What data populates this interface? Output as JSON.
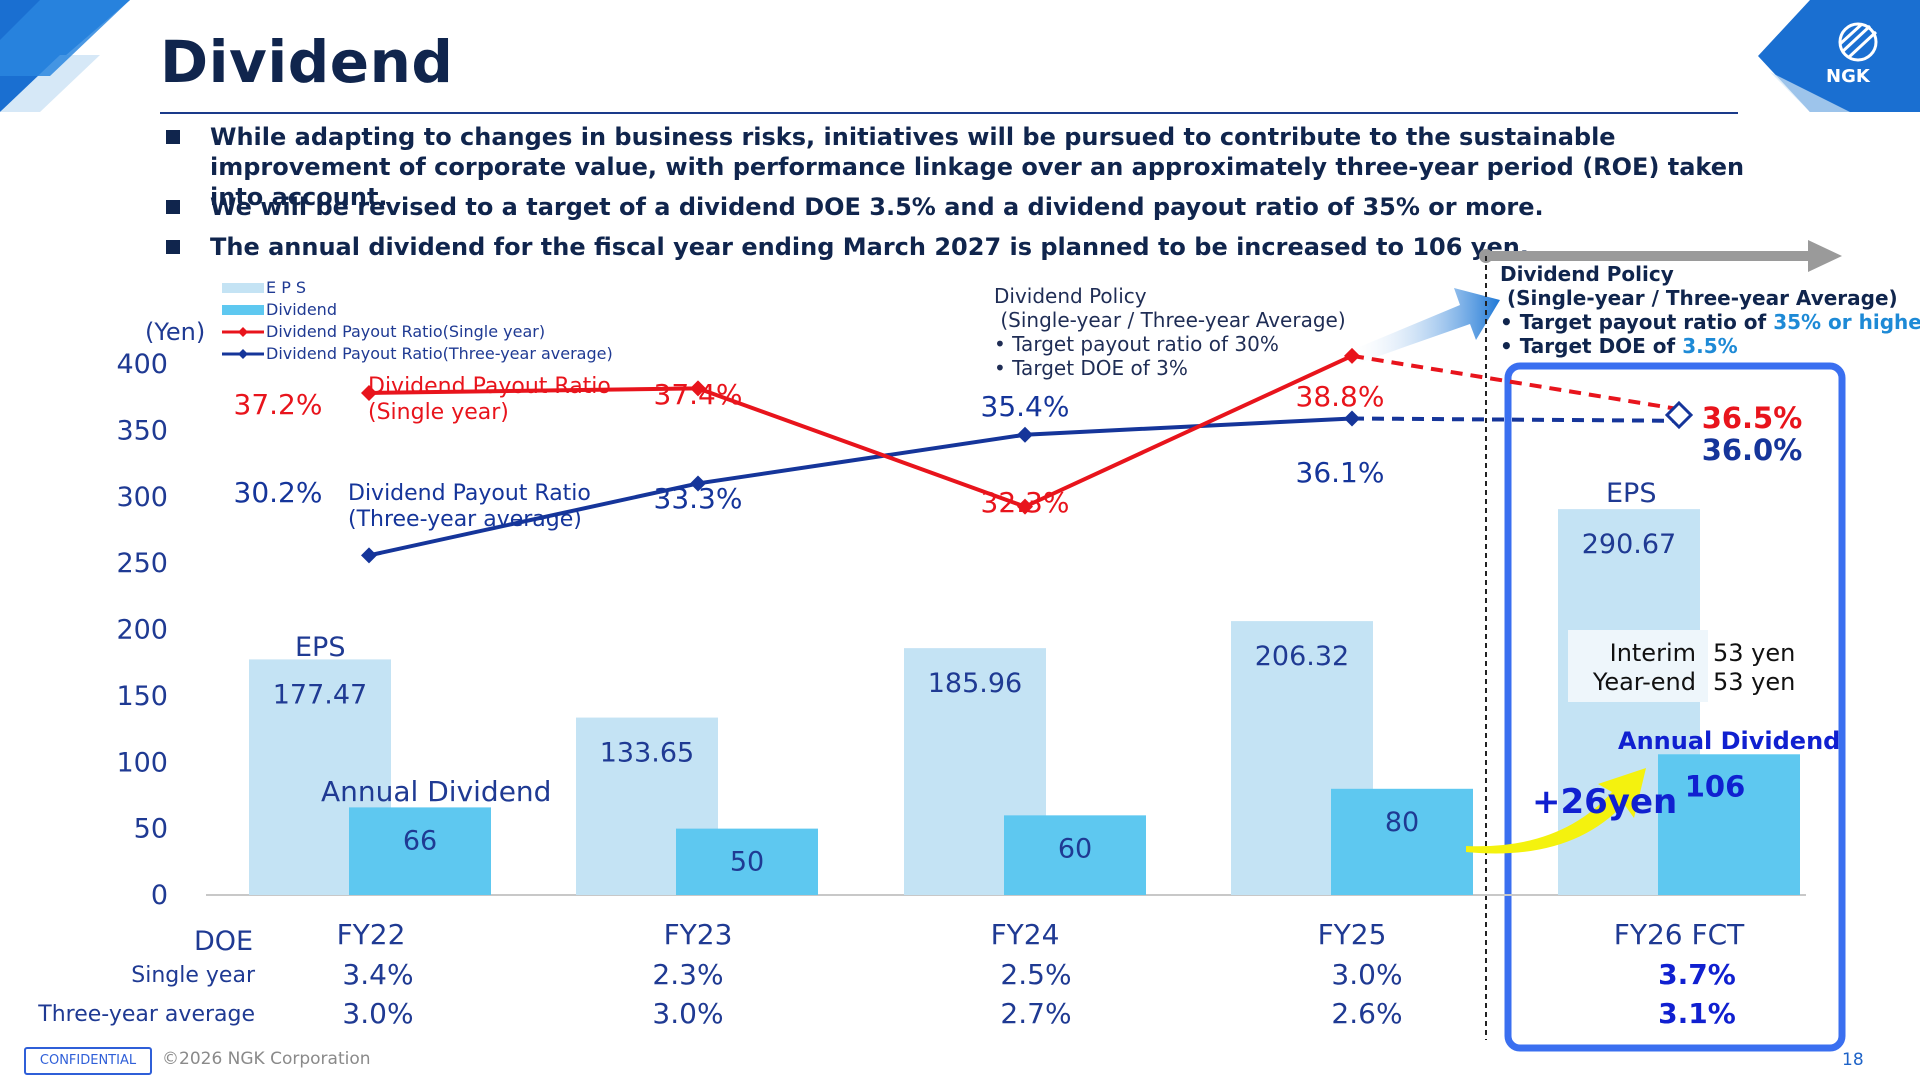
{
  "page": {
    "title": "Dividend",
    "bullets": [
      "While adapting to changes in business risks, initiatives will be pursued to contribute to the sustainable improvement of corporate value, with performance linkage over an approximately three-year period (ROE) taken into account.",
      "We will be revised to a target of a dividend  DOE 3.5% and a dividend payout ratio of 35% or more.",
      "The annual dividend for the fiscal year ending March 2027 is planned to be increased to 106 yen."
    ],
    "logo": "NGK",
    "footer": {
      "confidential": "CONFIDENTIAL",
      "copyright": "©2026 NGK Corporation",
      "page_number": "18"
    }
  },
  "annotations": {
    "old_policy": [
      "Dividend Policy",
      " (Single-year / Three-year Average)",
      "• Target payout ratio of 30%",
      "• Target DOE of 3%"
    ],
    "new_policy": {
      "title": "Dividend Policy",
      "subtitle": " (Single-year / Three-year Average)",
      "line1_prefix": "• Target payout ratio of ",
      "line1_highlight": "35% or higher",
      "line2_prefix": "• Target DOE of ",
      "line2_highlight": "3.5%"
    },
    "eps_label": "EPS",
    "annual_dividend_label": "Annual Dividend",
    "single_line_label": [
      "Dividend Payout Ratio",
      "(Single year)"
    ],
    "three_line_label": [
      "Dividend Payout Ratio",
      "(Three-year average)"
    ],
    "interim": {
      "label": "Interim",
      "value": "53 yen"
    },
    "year_end": {
      "label": "Year-end",
      "value": "53 yen"
    },
    "increase": "+26yen"
  },
  "colors": {
    "eps": "#c4e3f4",
    "dividend": "#5ec8f0",
    "single": "#e8141c",
    "three": "#15359a",
    "navy": "#10254d",
    "accent_blue": "#1e63c8",
    "frame": "#3a6ff0",
    "arrow_yellow": "#f4f20e"
  },
  "chart_data": {
    "type": "bar",
    "y_unit": "(Yen)",
    "ylim": [
      0,
      400
    ],
    "yticks": [
      0,
      50,
      100,
      150,
      200,
      250,
      300,
      350,
      400
    ],
    "categories": [
      "FY22",
      "FY23",
      "FY24",
      "FY25",
      "FY26 FCT"
    ],
    "legend": [
      "E P S",
      "Dividend",
      "Dividend Payout Ratio(Single year)",
      "Dividend Payout Ratio(Three-year average)"
    ],
    "series": [
      {
        "name": "E P S",
        "type": "bar",
        "values": [
          177.47,
          133.65,
          185.96,
          206.32,
          290.67
        ],
        "labels": [
          "177.47",
          "133.65",
          "185.96",
          "206.32",
          "290.67"
        ]
      },
      {
        "name": "Dividend",
        "type": "bar",
        "values": [
          66,
          50,
          60,
          80,
          106
        ],
        "labels": [
          "66",
          "50",
          "60",
          "80",
          "106"
        ]
      },
      {
        "name": "Dividend Payout Ratio(Single year)",
        "type": "line",
        "values": [
          37.2,
          37.4,
          32.3,
          38.8,
          36.5
        ],
        "labels": [
          "37.2%",
          "37.4%",
          "32.3%",
          "38.8%",
          "36.5%"
        ]
      },
      {
        "name": "Dividend Payout Ratio(Three-year average)",
        "type": "line",
        "values": [
          30.2,
          33.3,
          35.4,
          36.1,
          36.0
        ],
        "labels": [
          "30.2%",
          "33.3%",
          "35.4%",
          "36.1%",
          "36.0%"
        ]
      }
    ],
    "doe": {
      "header": "DOE",
      "rows": [
        {
          "label": "Single year",
          "values": [
            "3.4%",
            "2.3%",
            "2.5%",
            "3.0%",
            "3.7%"
          ]
        },
        {
          "label": "Three-year average",
          "values": [
            "3.0%",
            "3.0%",
            "2.7%",
            "2.6%",
            "3.1%"
          ]
        }
      ]
    }
  }
}
